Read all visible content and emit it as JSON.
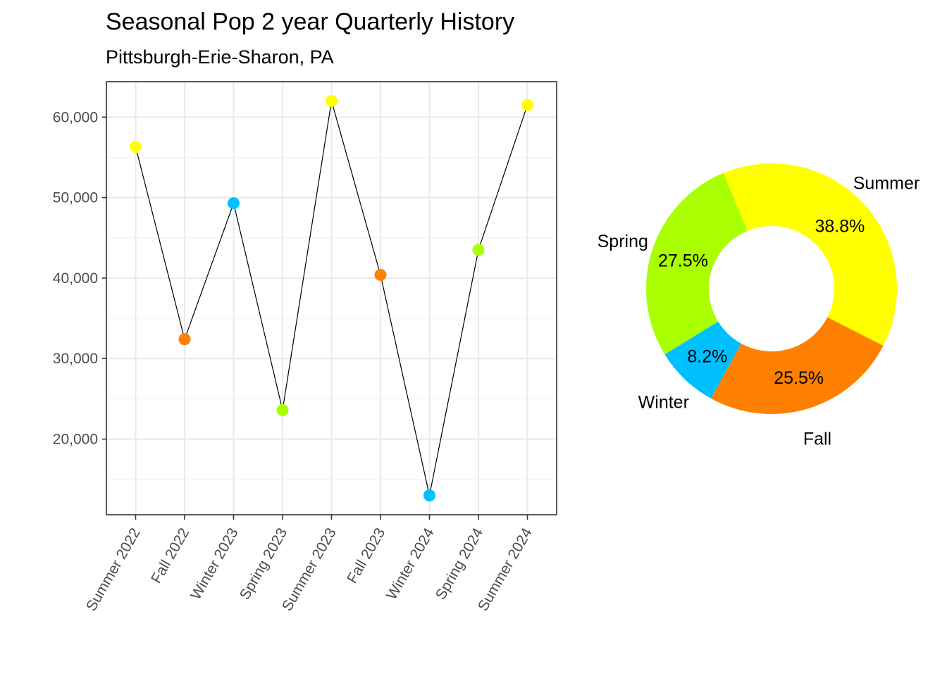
{
  "title": "Seasonal Pop 2 year Quarterly History",
  "subtitle": "Pittsburgh-Erie-Sharon, PA",
  "chart_data": [
    {
      "type": "line",
      "title": "Seasonal Pop 2 year Quarterly History",
      "subtitle": "Pittsburgh-Erie-Sharon, PA",
      "xlabel": "",
      "ylabel": "",
      "categories": [
        "Summer 2022",
        "Fall 2022",
        "Winter 2023",
        "Spring 2023",
        "Summer 2023",
        "Fall 2023",
        "Winter 2024",
        "Spring 2024",
        "Summer 2024"
      ],
      "values": [
        56300,
        32400,
        49300,
        23600,
        62000,
        40400,
        13000,
        43500,
        61500
      ],
      "point_seasons": [
        "Summer",
        "Fall",
        "Winter",
        "Spring",
        "Summer",
        "Fall",
        "Winter",
        "Spring",
        "Summer"
      ],
      "yticks": [
        20000,
        30000,
        40000,
        50000,
        60000
      ],
      "ytick_labels": [
        "20,000",
        "30,000",
        "40,000",
        "50,000",
        "60,000"
      ],
      "ylim": [
        10600,
        64400
      ],
      "grid": true,
      "line_color": "#000000"
    },
    {
      "type": "pie",
      "style": "donut",
      "labels": [
        "Summer",
        "Fall",
        "Winter",
        "Spring"
      ],
      "values": [
        38.8,
        25.5,
        8.2,
        27.5
      ],
      "value_labels": [
        "38.8%",
        "25.5%",
        "8.2%",
        "27.5%"
      ]
    }
  ],
  "season_colors": {
    "Summer": "#FFFF00",
    "Fall": "#FF8000",
    "Winter": "#00BFFF",
    "Spring": "#AAFF00"
  }
}
